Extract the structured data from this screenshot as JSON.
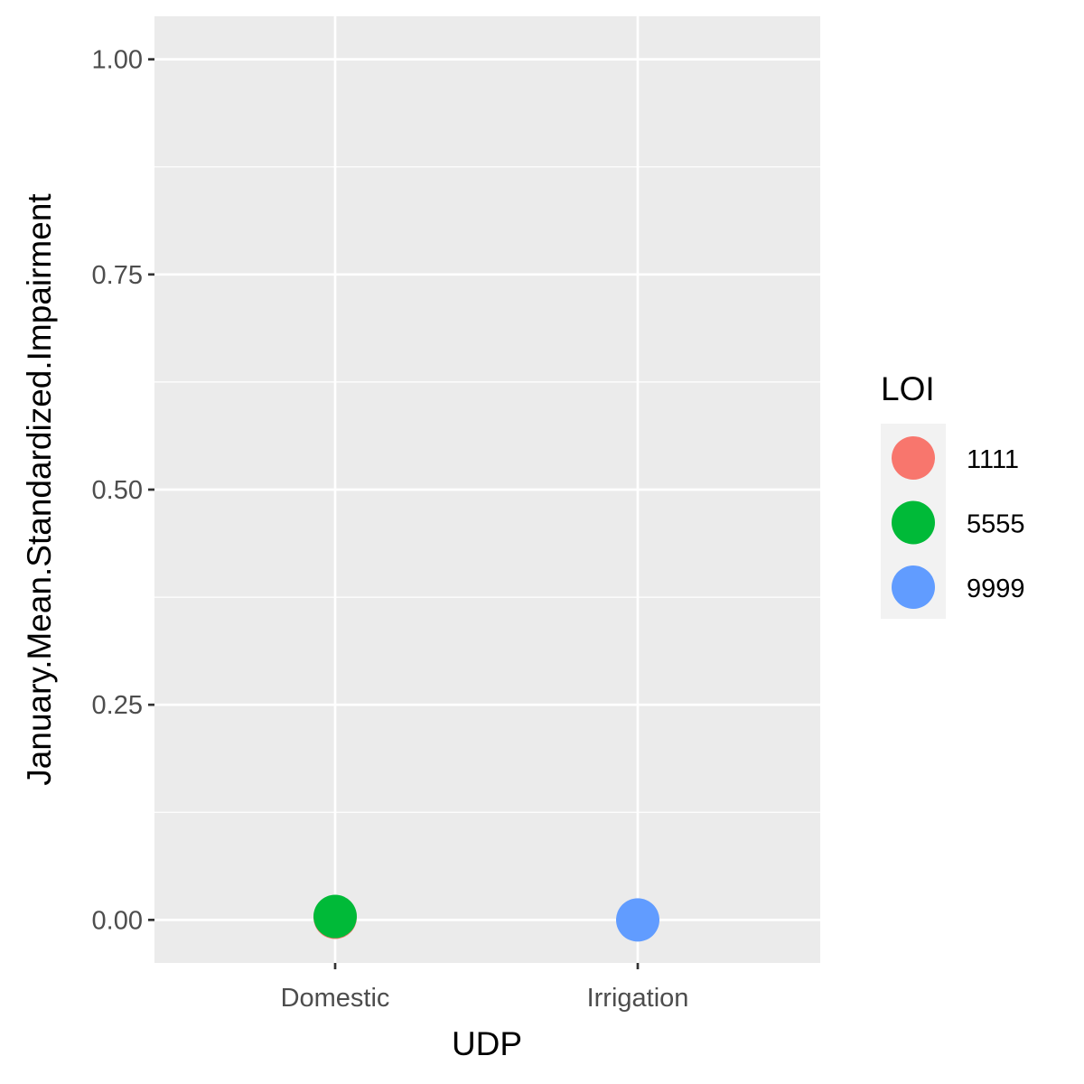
{
  "chart_data": {
    "type": "scatter",
    "xlabel": "UDP",
    "ylabel": "January.Mean.Standardized.Impairment",
    "categories": [
      "Domestic",
      "Irrigation"
    ],
    "ylim": [
      -0.05,
      1.05
    ],
    "y_ticks": [
      "0.00",
      "0.25",
      "0.50",
      "0.75",
      "1.00"
    ],
    "grid": true,
    "legend": {
      "title": "LOI",
      "placement": "right",
      "entries": [
        {
          "label": "1111",
          "color": "#F8766D"
        },
        {
          "label": "5555",
          "color": "#00BA38"
        },
        {
          "label": "9999",
          "color": "#619CFF"
        }
      ]
    },
    "series": [
      {
        "name": "1111",
        "color": "#F8766D",
        "points": [
          {
            "x": "Domestic",
            "y": 0.003
          }
        ]
      },
      {
        "name": "5555",
        "color": "#00BA38",
        "points": [
          {
            "x": "Domestic",
            "y": 0.004
          }
        ]
      },
      {
        "name": "9999",
        "color": "#619CFF",
        "points": [
          {
            "x": "Irrigation",
            "y": 0.0
          }
        ]
      }
    ]
  }
}
